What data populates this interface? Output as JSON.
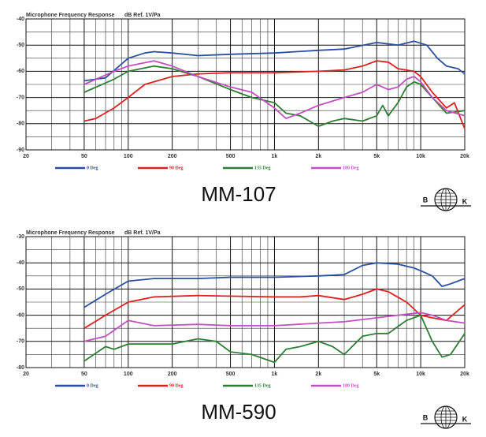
{
  "chart_data": [
    {
      "type": "line",
      "title": "Microphone Frequency Response",
      "ylabel": "dB Ref. 1V/Pa",
      "caption": "MM-107",
      "logo": {
        "left": "B",
        "right": "K"
      },
      "xscale": "log",
      "xlim": [
        20,
        20000
      ],
      "ylim": [
        -90,
        -40
      ],
      "grid": true,
      "xticks": [
        20,
        50,
        100,
        200,
        500,
        {
          "value": 1000,
          "label": "1k"
        },
        {
          "value": 2000,
          "label": "2k"
        },
        {
          "value": 5000,
          "label": "5k"
        },
        {
          "value": 10000,
          "label": "10k"
        },
        {
          "value": 20000,
          "label": "20k"
        }
      ],
      "xminor": [
        30,
        40,
        60,
        70,
        80,
        90,
        300,
        400,
        600,
        700,
        800,
        900,
        3000,
        4000,
        6000,
        7000,
        8000,
        9000
      ],
      "yticks": [
        -40,
        -50,
        -60,
        -70,
        -80,
        -90
      ],
      "yminor": [
        -45,
        -55,
        -65,
        -75,
        -85
      ],
      "series": [
        {
          "name": "0 Deg",
          "color": "#2a4fa0",
          "x": [
            50,
            70,
            100,
            130,
            150,
            200,
            300,
            500,
            1000,
            2000,
            3000,
            5000,
            7000,
            9000,
            11000,
            13000,
            15000,
            18000,
            20000
          ],
          "values": [
            -63.6,
            -62.5,
            -55,
            -53,
            -52.5,
            -53,
            -54,
            -53.5,
            -53,
            -52,
            -51.5,
            -49,
            -50,
            -48.5,
            -50,
            -55,
            -58,
            -59,
            -61
          ]
        },
        {
          "name": "90 Deg",
          "color": "#e02020",
          "x": [
            50,
            60,
            80,
            100,
            130,
            200,
            300,
            500,
            1000,
            2000,
            3000,
            4000,
            5000,
            6000,
            7000,
            9000,
            10000,
            12000,
            15000,
            17000,
            20000
          ],
          "values": [
            -79,
            -78,
            -74,
            -70,
            -65,
            -62,
            -61,
            -60.5,
            -60.5,
            -60,
            -59.5,
            -58,
            -56,
            -56.5,
            -59,
            -60,
            -62,
            -68,
            -74,
            -72,
            -82
          ]
        },
        {
          "name": "135 Deg",
          "color": "#2e7d32",
          "x": [
            50,
            80,
            100,
            150,
            200,
            300,
            500,
            700,
            1000,
            1200,
            1500,
            2000,
            2500,
            3000,
            4000,
            5000,
            5500,
            6000,
            7000,
            8000,
            9000,
            10000,
            12000,
            15000,
            20000
          ],
          "values": [
            -68,
            -63,
            -60,
            -58,
            -59,
            -62,
            -67,
            -70,
            -72,
            -76,
            -77,
            -81,
            -79,
            -78,
            -79,
            -77,
            -73,
            -77,
            -72,
            -66,
            -64,
            -65,
            -70,
            -76,
            -75
          ]
        },
        {
          "name": "180 Deg",
          "color": "#c050c0",
          "x": [
            50,
            80,
            100,
            150,
            200,
            300,
            500,
            700,
            1000,
            1200,
            1500,
            2000,
            3000,
            4000,
            5000,
            6000,
            7000,
            8000,
            9000,
            10000,
            12000,
            15000,
            20000
          ],
          "values": [
            -65,
            -60,
            -58,
            -56,
            -58,
            -62,
            -66,
            -68,
            -74,
            -78,
            -76,
            -73,
            -70,
            -68,
            -65,
            -67,
            -66,
            -63,
            -62,
            -64,
            -70,
            -75,
            -77
          ]
        }
      ]
    },
    {
      "type": "line",
      "title": "Microphone Frequency Response",
      "ylabel": "dB Ref. 1V/Pa",
      "caption": "MM-590",
      "logo": {
        "left": "B",
        "right": "K"
      },
      "xscale": "log",
      "xlim": [
        20,
        20000
      ],
      "ylim": [
        -80,
        -30
      ],
      "grid": true,
      "xticks": [
        20,
        50,
        100,
        200,
        500,
        {
          "value": 1000,
          "label": "1k"
        },
        {
          "value": 2000,
          "label": "2k"
        },
        {
          "value": 5000,
          "label": "5k"
        },
        {
          "value": 10000,
          "label": "10k"
        },
        {
          "value": 20000,
          "label": "20k"
        }
      ],
      "xminor": [
        30,
        40,
        60,
        70,
        80,
        90,
        300,
        400,
        600,
        700,
        800,
        900,
        3000,
        4000,
        6000,
        7000,
        8000,
        9000
      ],
      "yticks": [
        -30,
        -40,
        -50,
        -60,
        -70,
        -80
      ],
      "yminor": [
        -35,
        -45,
        -55,
        -65,
        -75
      ],
      "series": [
        {
          "name": "0 Deg",
          "color": "#2a4fa0",
          "x": [
            50,
            70,
            100,
            150,
            300,
            500,
            1000,
            2000,
            3000,
            4000,
            5000,
            7000,
            9000,
            10000,
            12000,
            14000,
            16000,
            20000
          ],
          "values": [
            -57,
            -52,
            -47,
            -46,
            -46,
            -45.5,
            -45.5,
            -45,
            -44.5,
            -41,
            -40,
            -40.5,
            -42,
            -43,
            -45,
            -49,
            -48,
            -46
          ]
        },
        {
          "name": "90 Deg",
          "color": "#e02020",
          "x": [
            50,
            70,
            100,
            150,
            300,
            1000,
            1500,
            2000,
            3000,
            4000,
            5000,
            6000,
            8000,
            10000,
            12000,
            15000,
            20000
          ],
          "values": [
            -65,
            -60,
            -55,
            -53,
            -52.5,
            -53,
            -53,
            -52.5,
            -54,
            -52,
            -50,
            -51,
            -55,
            -60,
            -61,
            -62,
            -56
          ]
        },
        {
          "name": "135 Deg",
          "color": "#2e7d32",
          "x": [
            50,
            70,
            80,
            100,
            200,
            300,
            400,
            500,
            700,
            1000,
            1200,
            1500,
            2000,
            2500,
            3000,
            4000,
            5000,
            6000,
            8000,
            10000,
            12000,
            14000,
            16000,
            20000
          ],
          "values": [
            -77.5,
            -72,
            -73,
            -71,
            -71,
            -69,
            -70,
            -74,
            -75,
            -78,
            -73,
            -72,
            -70,
            -72,
            -75,
            -68,
            -67,
            -67,
            -62,
            -60,
            -70,
            -76,
            -75,
            -67
          ]
        },
        {
          "name": "180 Deg",
          "color": "#c050c0",
          "x": [
            50,
            70,
            100,
            150,
            300,
            500,
            1000,
            2000,
            3000,
            5000,
            7000,
            10000,
            12000,
            15000,
            20000
          ],
          "values": [
            -70,
            -68,
            -62,
            -64,
            -63.5,
            -64,
            -64,
            -63,
            -62.5,
            -61,
            -60,
            -59,
            -60,
            -62,
            -63
          ]
        }
      ]
    }
  ]
}
